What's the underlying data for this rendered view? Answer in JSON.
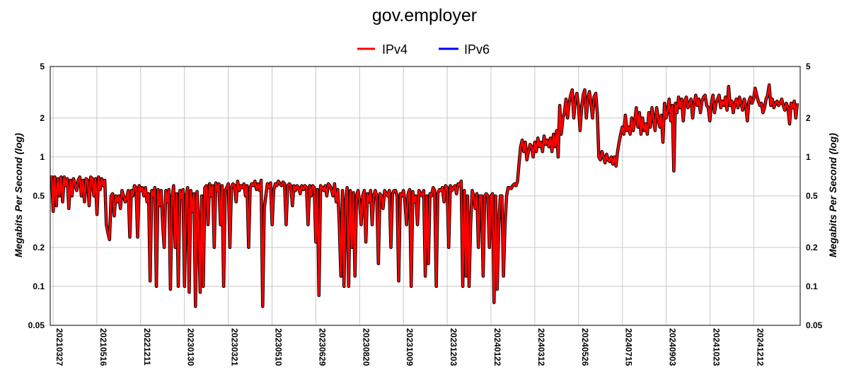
{
  "chart_data": {
    "type": "line",
    "title": "gov.employer",
    "ylabel_left": "Megabits Per Second (log)",
    "ylabel_right": "Megabits Per Second (log)",
    "xlabel": "",
    "yscale": "log",
    "ylim": [
      0.05,
      5
    ],
    "yticks": [
      0.05,
      0.1,
      0.2,
      0.5,
      1,
      2,
      5
    ],
    "ytick_labels": [
      "0.05",
      "0.1",
      "0.2",
      "0.5",
      "1",
      "2",
      "5"
    ],
    "x_tick_labels": [
      "20210327",
      "20210516",
      "20221211",
      "20230130",
      "20230321",
      "20230510",
      "20230629",
      "20230820",
      "20231009",
      "20231203",
      "20240122",
      "20240312",
      "20240526",
      "20240715",
      "20240903",
      "20241023",
      "20241212"
    ],
    "legend": {
      "placement": "top-center",
      "entries": [
        {
          "name": "IPv4",
          "color": "#ff0000"
        },
        {
          "name": "IPv6",
          "color": "#0000ff"
        }
      ]
    },
    "grid": true,
    "colors": {
      "ipv4": "#ff0000",
      "ipv6": "#0000ff",
      "outline": "#000000",
      "grid": "#c8c8c8"
    },
    "series": [
      {
        "name": "IPv4",
        "color": "#ff0000",
        "values": [
          0.72,
          0.38,
          0.7,
          0.42,
          0.68,
          0.5,
          0.7,
          0.45,
          0.7,
          0.6,
          0.68,
          0.4,
          0.66,
          0.5,
          0.68,
          0.62,
          0.55,
          0.66,
          0.7,
          0.5,
          0.66,
          0.45,
          0.68,
          0.66,
          0.42,
          0.7,
          0.68,
          0.5,
          0.68,
          0.36,
          0.7,
          0.56,
          0.68,
          0.6,
          0.66,
          0.3,
          0.26,
          0.23,
          0.5,
          0.52,
          0.35,
          0.5,
          0.45,
          0.5,
          0.4,
          0.55,
          0.5,
          0.45,
          0.48,
          0.55,
          0.24,
          0.55,
          0.5,
          0.6,
          0.58,
          0.24,
          0.6,
          0.55,
          0.58,
          0.5,
          0.58,
          0.45,
          0.52,
          0.11,
          0.55,
          0.5,
          0.58,
          0.1,
          0.56,
          0.42,
          0.55,
          0.3,
          0.2,
          0.55,
          0.45,
          0.56,
          0.095,
          0.48,
          0.6,
          0.2,
          0.52,
          0.1,
          0.55,
          0.48,
          0.56,
          0.1,
          0.5,
          0.58,
          0.09,
          0.55,
          0.38,
          0.52,
          0.07,
          0.54,
          0.3,
          0.09,
          0.5,
          0.1,
          0.58,
          0.6,
          0.3,
          0.62,
          0.5,
          0.6,
          0.2,
          0.63,
          0.55,
          0.62,
          0.3,
          0.6,
          0.1,
          0.55,
          0.58,
          0.62,
          0.2,
          0.58,
          0.62,
          0.6,
          0.45,
          0.65,
          0.55,
          0.6,
          0.58,
          0.62,
          0.5,
          0.6,
          0.2,
          0.58,
          0.62,
          0.6,
          0.65,
          0.56,
          0.62,
          0.55,
          0.66,
          0.07,
          0.4,
          0.5,
          0.62,
          0.58,
          0.63,
          0.3,
          0.55,
          0.62,
          0.6,
          0.65,
          0.62,
          0.6,
          0.64,
          0.62,
          0.3,
          0.6,
          0.62,
          0.6,
          0.42,
          0.6,
          0.55,
          0.6,
          0.58,
          0.52,
          0.6,
          0.56,
          0.6,
          0.58,
          0.3,
          0.6,
          0.5,
          0.6,
          0.58,
          0.22,
          0.56,
          0.085,
          0.6,
          0.58,
          0.55,
          0.6,
          0.5,
          0.62,
          0.6,
          0.56,
          0.5,
          0.62,
          0.45,
          0.56,
          0.3,
          0.12,
          0.55,
          0.1,
          0.45,
          0.58,
          0.1,
          0.55,
          0.2,
          0.53,
          0.12,
          0.5,
          0.55,
          0.45,
          0.3,
          0.5,
          0.55,
          0.22,
          0.52,
          0.45,
          0.55,
          0.3,
          0.5,
          0.55,
          0.5,
          0.15,
          0.52,
          0.5,
          0.4,
          0.55,
          0.52,
          0.5,
          0.55,
          0.2,
          0.52,
          0.55,
          0.55,
          0.5,
          0.11,
          0.52,
          0.5,
          0.55,
          0.45,
          0.3,
          0.52,
          0.56,
          0.1,
          0.54,
          0.45,
          0.5,
          0.3,
          0.55,
          0.52,
          0.5,
          0.55,
          0.12,
          0.5,
          0.15,
          0.52,
          0.5,
          0.58,
          0.55,
          0.1,
          0.52,
          0.56,
          0.55,
          0.58,
          0.45,
          0.6,
          0.58,
          0.2,
          0.6,
          0.55,
          0.58,
          0.6,
          0.52,
          0.62,
          0.6,
          0.65,
          0.1,
          0.55,
          0.12,
          0.5,
          0.1,
          0.3,
          0.55,
          0.5,
          0.4,
          0.52,
          0.2,
          0.5,
          0.5,
          0.12,
          0.5,
          0.52,
          0.5,
          0.2,
          0.5,
          0.52,
          0.075,
          0.5,
          0.095,
          0.3,
          0.5,
          0.5,
          0.12,
          0.3,
          0.5,
          0.58,
          0.58,
          0.57,
          0.6,
          0.62,
          0.6,
          0.65,
          0.9,
          1.2,
          1.35,
          1.1,
          1.3,
          0.95,
          1.1,
          1.25,
          1.2,
          1.0,
          1.3,
          1.1,
          1.4,
          1.2,
          1.3,
          1.1,
          1.45,
          1.25,
          1.35,
          1.2,
          1.4,
          1.1,
          1.5,
          1.2,
          1.6,
          1.0,
          2.5,
          1.5,
          2.0,
          2.2,
          2.8,
          2.0,
          2.6,
          3.0,
          3.3,
          2.0,
          2.8,
          3.1,
          2.5,
          1.6,
          2.4,
          3.0,
          3.3,
          2.0,
          2.8,
          3.2,
          2.6,
          2.0,
          2.9,
          3.1,
          2.2,
          1.0,
          0.95,
          1.1,
          1.0,
          0.9,
          1.05,
          0.95,
          0.92,
          1.0,
          0.88,
          1.0,
          0.85,
          1.1,
          1.3,
          1.5,
          1.7,
          1.5,
          2.1,
          1.6,
          1.7,
          1.5,
          2.0,
          1.6,
          1.9,
          2.4,
          1.7,
          2.2,
          1.5,
          2.0,
          1.6,
          1.8,
          1.5,
          2.2,
          1.7,
          2.4,
          2.0,
          1.6,
          2.4,
          2.0,
          1.7,
          2.1,
          1.3,
          2.6,
          2.0,
          2.3,
          2.8,
          1.9,
          2.5,
          0.78,
          2.6,
          2.2,
          2.9,
          2.4,
          2.8,
          1.9,
          2.7,
          2.9,
          2.4,
          2.6,
          2.8,
          2.0,
          2.6,
          3.0,
          2.5,
          2.8,
          2.2,
          2.7,
          2.9,
          3.0,
          2.5,
          2.4,
          1.9,
          2.6,
          3.0,
          2.2,
          2.6,
          2.8,
          3.0,
          2.4,
          2.7,
          2.5,
          2.9,
          2.3,
          3.5,
          2.5,
          2.7,
          2.2,
          2.6,
          2.8,
          2.4,
          2.9,
          2.6,
          2.3,
          2.8,
          2.5,
          1.9,
          2.7,
          2.9,
          2.6,
          2.8,
          3.4,
          3.0,
          2.7,
          2.5,
          2.6,
          2.2,
          2.4,
          2.8,
          3.0,
          3.6,
          2.5,
          2.8,
          2.4,
          2.6,
          2.7,
          2.5,
          2.6,
          2.8,
          2.5,
          2.3,
          2.6,
          2.4,
          1.8,
          2.6,
          2.4,
          2.7,
          2.0,
          2.6
        ]
      },
      {
        "name": "IPv6",
        "color": "#0000ff",
        "values": []
      }
    ]
  }
}
